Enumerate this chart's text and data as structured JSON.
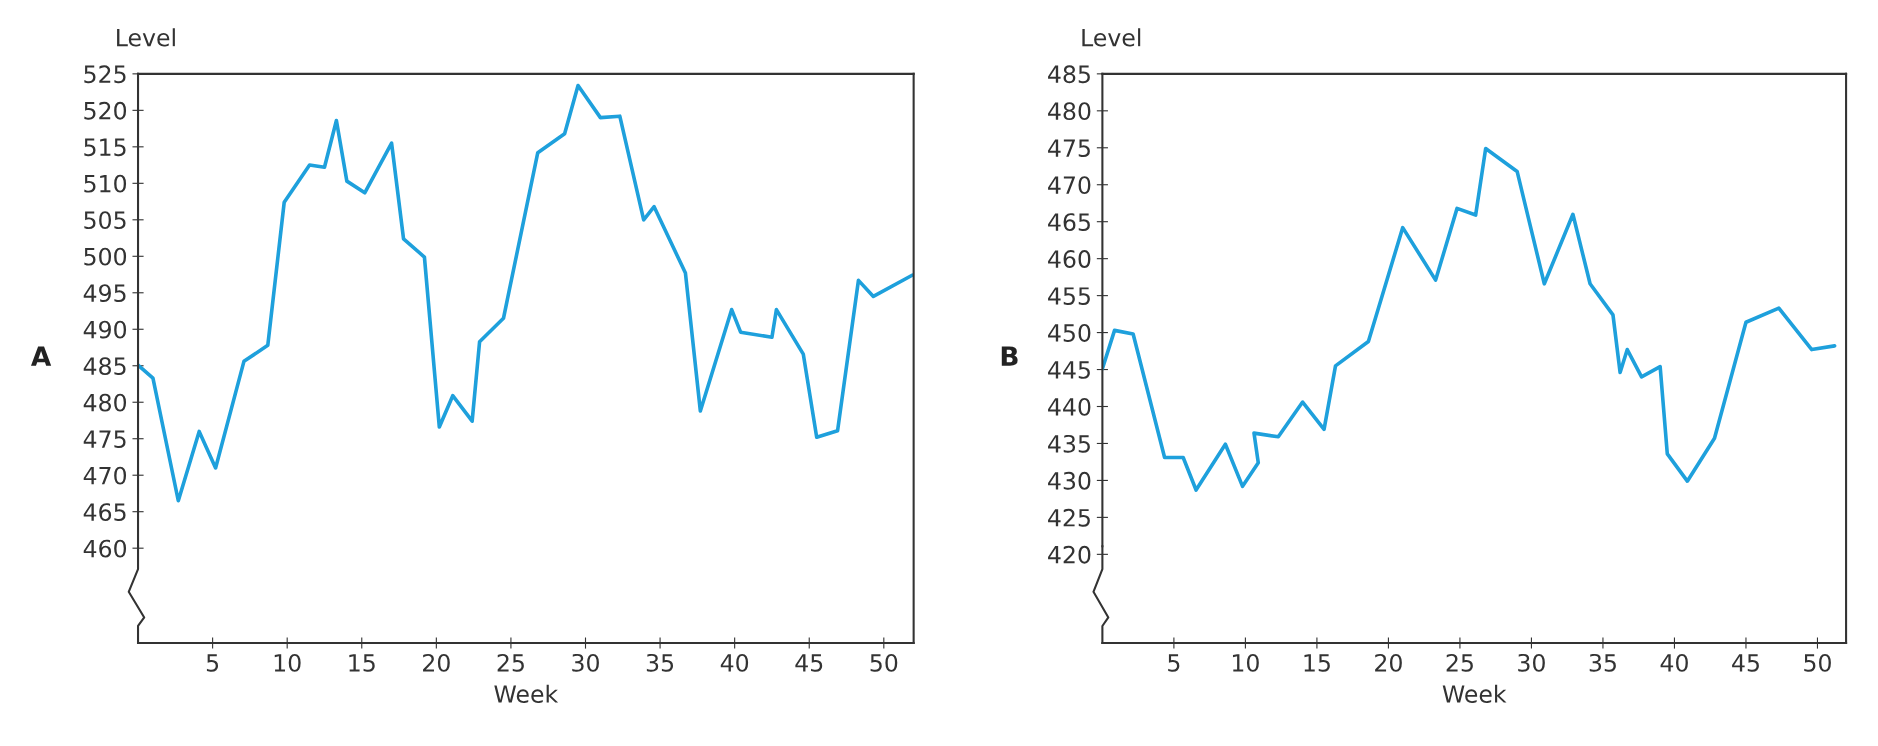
{
  "chart_data": [
    {
      "type": "line",
      "title": "A",
      "xlabel": "Week",
      "ylabel": "Level",
      "color": "#1ea0dc",
      "x": [
        0,
        1,
        2.7,
        4.1,
        5.2,
        7.1,
        8.7,
        9.8,
        11.5,
        12.5,
        13.3,
        14.0,
        15.2,
        17.0,
        17.8,
        19.2,
        20.2,
        21.1,
        22.4,
        22.9,
        24.5,
        26.8,
        28.6,
        29.5,
        31.0,
        32.3,
        33.9,
        34.6,
        36.7,
        37.7,
        39.8,
        40.4,
        42.5,
        42.8,
        44.6,
        45.5,
        46.9,
        48.3,
        49.3,
        51.9
      ],
      "values": [
        485.1,
        483.3,
        466.5,
        476,
        471,
        485.6,
        487.8,
        507.4,
        512.5,
        512.2,
        518.6,
        510.3,
        508.7,
        515.5,
        502.4,
        499.9,
        476.6,
        480.9,
        477.4,
        488.3,
        491.5,
        514.2,
        516.8,
        523.4,
        519.0,
        519.2,
        505.0,
        506.8,
        497.7,
        478.8,
        492.7,
        489.6,
        488.9,
        492.7,
        486.6,
        475.2,
        476.1,
        496.7,
        494.5,
        497.4
      ],
      "xlim": [
        0,
        52
      ],
      "ylim": [
        447,
        525
      ],
      "xticks": [
        5,
        10,
        15,
        20,
        25,
        30,
        35,
        40,
        45,
        50
      ],
      "yticks": [
        460,
        465,
        470,
        475,
        480,
        485,
        490,
        495,
        500,
        505,
        510,
        515,
        520,
        525
      ]
    },
    {
      "type": "line",
      "title": "B",
      "xlabel": "Week",
      "ylabel": "Level",
      "color": "#1ea0dc",
      "x": [
        0,
        0.85,
        2.15,
        4.35,
        5.65,
        6.55,
        8.6,
        9.8,
        10.9,
        10.6,
        12.3,
        14.0,
        15.5,
        16.3,
        18.6,
        21.0,
        23.3,
        24.8,
        26.1,
        26.8,
        29.0,
        30.9,
        32.9,
        34.1,
        35.7,
        36.2,
        36.7,
        37.7,
        39.0,
        39.5,
        40.9,
        42.8,
        45.0,
        47.3,
        49.6,
        51.2
      ],
      "values": [
        445.1,
        450.3,
        449.8,
        433.1,
        433.1,
        428.7,
        434.9,
        429.2,
        432.4,
        436.4,
        435.9,
        440.6,
        436.9,
        445.5,
        448.8,
        464.2,
        457.1,
        466.8,
        465.9,
        474.9,
        471.8,
        456.6,
        466.0,
        456.6,
        452.4,
        444.6,
        447.7,
        444.0,
        445.4,
        433.6,
        429.9,
        435.7,
        451.4,
        453.3,
        447.7,
        448.2
      ],
      "xlim": [
        0,
        52
      ],
      "ylim": [
        408,
        485
      ],
      "xticks": [
        5,
        10,
        15,
        20,
        25,
        30,
        35,
        40,
        45,
        50
      ],
      "yticks": [
        420,
        425,
        430,
        435,
        440,
        445,
        450,
        455,
        460,
        465,
        470,
        475,
        480,
        485
      ]
    }
  ]
}
